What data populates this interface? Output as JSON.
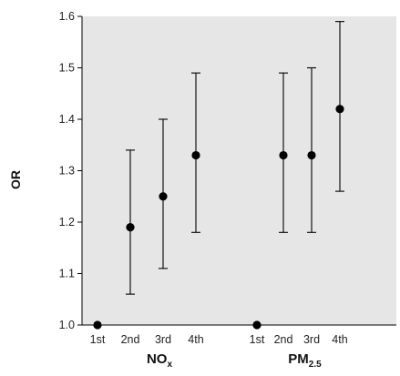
{
  "chart_data": {
    "type": "scatter",
    "ylabel": "OR",
    "ylim": [
      1.0,
      1.6
    ],
    "yticks": [
      "1.0",
      "1.1",
      "1.2",
      "1.3",
      "1.4",
      "1.5",
      "1.6"
    ],
    "background": "#e6e6e6",
    "marker_color": "#000000",
    "groups": [
      {
        "label_main": "NO",
        "label_sub": "x",
        "categories": [
          "1st",
          "2nd",
          "3rd",
          "4th"
        ],
        "or": [
          1.0,
          1.19,
          1.25,
          1.33
        ],
        "ci_low": [
          null,
          1.06,
          1.11,
          1.18
        ],
        "ci_high": [
          null,
          1.34,
          1.4,
          1.49
        ]
      },
      {
        "label_main": "PM",
        "label_sub": "2.5",
        "categories": [
          "1st",
          "2nd",
          "3rd",
          "4th"
        ],
        "or": [
          1.0,
          1.33,
          1.33,
          1.42
        ],
        "ci_low": [
          null,
          1.18,
          1.18,
          1.26
        ],
        "ci_high": [
          null,
          1.49,
          1.5,
          1.59
        ]
      }
    ]
  }
}
